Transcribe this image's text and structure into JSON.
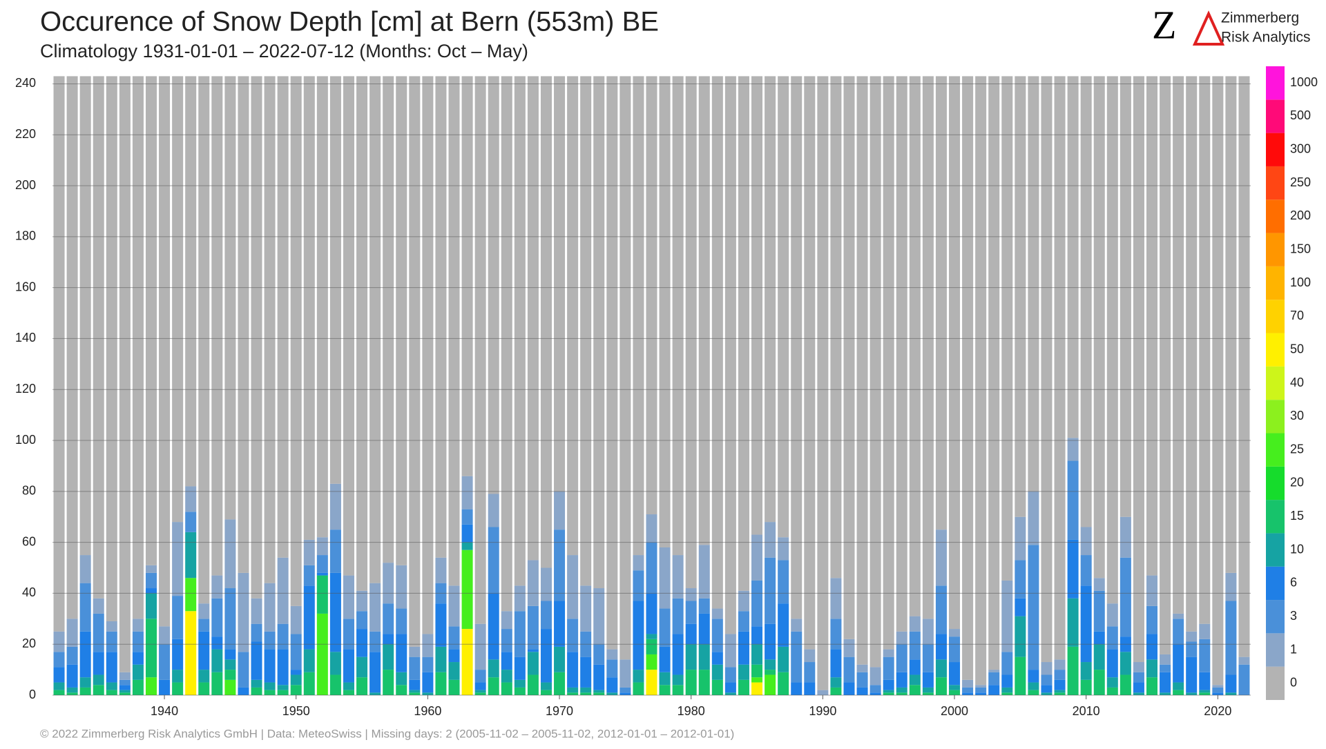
{
  "chart_data": {
    "type": "stacked_bar",
    "title": "Occurence of Snow Depth [cm] at Bern (553m) BE",
    "subtitle": "Climatology 1931-01-01 – 2022-07-12 (Months: Oct – May)",
    "footer": "©  2022 Zimmerberg Risk Analytics GmbH | Data: MeteoSwiss | Missing days: 2 (2005-11-02 – 2005-11-02, 2012-01-01 – 2012-01-01)",
    "logo": {
      "mark": "Z",
      "lines": [
        "Zimmerberg",
        "Risk Analytics"
      ]
    },
    "x": [
      1932,
      1933,
      1934,
      1935,
      1936,
      1937,
      1938,
      1939,
      1940,
      1941,
      1942,
      1943,
      1944,
      1945,
      1946,
      1947,
      1948,
      1949,
      1950,
      1951,
      1952,
      1953,
      1954,
      1955,
      1956,
      1957,
      1958,
      1959,
      1960,
      1961,
      1962,
      1963,
      1964,
      1965,
      1966,
      1967,
      1968,
      1969,
      1970,
      1971,
      1972,
      1973,
      1974,
      1975,
      1976,
      1977,
      1978,
      1979,
      1980,
      1981,
      1982,
      1983,
      1984,
      1985,
      1986,
      1987,
      1988,
      1989,
      1990,
      1991,
      1992,
      1993,
      1994,
      1995,
      1996,
      1997,
      1998,
      1999,
      2000,
      2001,
      2002,
      2003,
      2004,
      2005,
      2006,
      2007,
      2008,
      2009,
      2010,
      2011,
      2012,
      2013,
      2014,
      2015,
      2016,
      2017,
      2018,
      2019,
      2020,
      2021,
      2022
    ],
    "xlim": [
      1931.5,
      2022.5
    ],
    "xticks": [
      1940,
      1950,
      1960,
      1970,
      1980,
      1990,
      2000,
      2010,
      2020
    ],
    "ylim": [
      0,
      245
    ],
    "yticks": [
      0,
      20,
      40,
      60,
      80,
      100,
      120,
      140,
      160,
      180,
      200,
      220,
      240
    ],
    "grid": true,
    "colorbar": [
      {
        "label": "0",
        "color": "#b3b3b3"
      },
      {
        "label": "1",
        "color": "#8aa6c9"
      },
      {
        "label": "3",
        "color": "#4a90d9"
      },
      {
        "label": "6",
        "color": "#1f7fe6"
      },
      {
        "label": "10",
        "color": "#16a3a3"
      },
      {
        "label": "15",
        "color": "#17c36b"
      },
      {
        "label": "20",
        "color": "#16dc2c"
      },
      {
        "label": "25",
        "color": "#46ee1e"
      },
      {
        "label": "30",
        "color": "#8cf01e"
      },
      {
        "label": "40",
        "color": "#cdf51a"
      },
      {
        "label": "50",
        "color": "#fff000"
      },
      {
        "label": "70",
        "color": "#ffd200"
      },
      {
        "label": "100",
        "color": "#ffb400"
      },
      {
        "label": "150",
        "color": "#ff9600"
      },
      {
        "label": "200",
        "color": "#ff6e00"
      },
      {
        "label": "250",
        "color": "#ff4614"
      },
      {
        "label": "300",
        "color": "#ff0a0a"
      },
      {
        "label": "500",
        "color": "#ff0a78"
      },
      {
        "label": "1000",
        "color": "#ff14dc"
      }
    ],
    "series": [
      {
        "name": "50",
        "values": [
          0,
          0,
          0,
          0,
          0,
          0,
          0,
          0,
          0,
          0,
          33,
          0,
          0,
          0,
          0,
          0,
          0,
          0,
          0,
          0,
          0,
          0,
          0,
          0,
          0,
          0,
          0,
          0,
          0,
          0,
          0,
          26,
          0,
          0,
          0,
          0,
          0,
          0,
          0,
          0,
          0,
          0,
          0,
          0,
          0,
          10,
          0,
          0,
          0,
          0,
          0,
          0,
          0,
          5,
          0,
          0,
          0,
          0,
          0,
          0,
          0,
          0,
          0,
          0,
          0,
          0,
          0,
          0,
          0,
          0,
          0,
          0,
          0,
          0,
          0,
          0,
          0,
          0,
          0,
          0,
          0,
          0,
          0,
          0,
          0,
          0,
          0,
          0,
          0,
          0,
          0
        ]
      },
      {
        "name": "25",
        "values": [
          0,
          0,
          0,
          0,
          0,
          0,
          0,
          7,
          0,
          0,
          13,
          0,
          0,
          6,
          0,
          0,
          0,
          0,
          0,
          0,
          32,
          0,
          0,
          0,
          0,
          0,
          0,
          0,
          0,
          0,
          0,
          31,
          0,
          0,
          0,
          0,
          0,
          0,
          0,
          0,
          0,
          0,
          0,
          0,
          0,
          6,
          0,
          0,
          0,
          0,
          0,
          0,
          0,
          2,
          8,
          0,
          0,
          0,
          0,
          0,
          0,
          0,
          0,
          0,
          0,
          0,
          0,
          0,
          0,
          0,
          0,
          0,
          0,
          0,
          0,
          0,
          0,
          0,
          0,
          0,
          0,
          0,
          0,
          0,
          0,
          0,
          0,
          0,
          0,
          0,
          0
        ]
      },
      {
        "name": "15",
        "values": [
          2,
          1,
          3,
          4,
          2,
          1,
          6,
          23,
          0,
          5,
          0,
          5,
          9,
          4,
          0,
          3,
          2,
          2,
          4,
          9,
          15,
          8,
          2,
          7,
          0,
          10,
          4,
          1,
          0,
          9,
          6,
          0,
          1,
          7,
          5,
          3,
          8,
          2,
          9,
          1,
          1,
          1,
          0,
          0,
          5,
          6,
          4,
          4,
          10,
          10,
          6,
          0,
          6,
          5,
          2,
          9,
          0,
          0,
          0,
          3,
          0,
          0,
          0,
          1,
          1,
          4,
          1,
          7,
          2,
          0,
          0,
          0,
          1,
          15,
          2,
          0,
          1,
          19,
          6,
          10,
          3,
          8,
          0,
          7,
          0,
          2,
          0,
          1,
          0,
          0,
          0
        ]
      },
      {
        "name": "10",
        "values": [
          3,
          2,
          4,
          4,
          3,
          1,
          6,
          10,
          0,
          5,
          18,
          5,
          9,
          4,
          0,
          3,
          3,
          2,
          4,
          9,
          0,
          9,
          3,
          8,
          1,
          10,
          5,
          1,
          1,
          10,
          7,
          3,
          1,
          7,
          5,
          3,
          9,
          3,
          10,
          2,
          2,
          1,
          1,
          0,
          5,
          2,
          5,
          4,
          10,
          10,
          6,
          1,
          6,
          8,
          4,
          10,
          0,
          0,
          0,
          4,
          0,
          0,
          0,
          1,
          2,
          4,
          2,
          7,
          2,
          0,
          0,
          0,
          2,
          16,
          3,
          1,
          1,
          19,
          7,
          10,
          4,
          9,
          1,
          7,
          1,
          3,
          1,
          1,
          0,
          1,
          0
        ]
      },
      {
        "name": "6",
        "values": [
          6,
          9,
          18,
          9,
          12,
          2,
          5,
          2,
          6,
          12,
          0,
          15,
          5,
          4,
          3,
          15,
          13,
          14,
          2,
          25,
          1,
          31,
          13,
          11,
          16,
          4,
          15,
          4,
          8,
          17,
          5,
          7,
          3,
          26,
          7,
          9,
          1,
          21,
          18,
          14,
          12,
          10,
          6,
          1,
          27,
          16,
          10,
          16,
          8,
          12,
          5,
          4,
          13,
          7,
          14,
          17,
          5,
          5,
          0,
          11,
          5,
          3,
          1,
          4,
          6,
          6,
          6,
          10,
          9,
          1,
          1,
          4,
          5,
          7,
          5,
          3,
          4,
          23,
          30,
          5,
          11,
          6,
          4,
          10,
          8,
          15,
          14,
          7,
          1,
          7,
          0
        ]
      },
      {
        "name": "3",
        "values": [
          6,
          7,
          19,
          15,
          8,
          2,
          8,
          6,
          14,
          17,
          8,
          5,
          15,
          24,
          14,
          7,
          7,
          10,
          14,
          8,
          7,
          17,
          12,
          7,
          8,
          12,
          10,
          9,
          6,
          8,
          9,
          6,
          5,
          26,
          9,
          18,
          17,
          11,
          28,
          13,
          10,
          8,
          7,
          2,
          12,
          20,
          15,
          14,
          9,
          6,
          13,
          6,
          8,
          18,
          26,
          17,
          20,
          8,
          0,
          12,
          10,
          6,
          3,
          9,
          11,
          11,
          11,
          19,
          10,
          2,
          2,
          5,
          9,
          15,
          49,
          4,
          4,
          31,
          12,
          16,
          9,
          31,
          4,
          11,
          3,
          10,
          6,
          13,
          2,
          29,
          12
        ]
      },
      {
        "name": "1",
        "values": [
          8,
          11,
          11,
          6,
          4,
          3,
          5,
          3,
          7,
          29,
          10,
          6,
          9,
          27,
          31,
          10,
          19,
          26,
          11,
          10,
          7,
          18,
          17,
          8,
          19,
          16,
          17,
          4,
          9,
          10,
          16,
          13,
          18,
          13,
          7,
          10,
          18,
          13,
          15,
          25,
          18,
          22,
          4,
          11,
          6,
          11,
          24,
          17,
          5,
          21,
          4,
          13,
          8,
          18,
          14,
          9,
          5,
          5,
          2,
          16,
          7,
          3,
          7,
          3,
          5,
          6,
          10,
          22,
          3,
          3,
          1,
          1,
          28,
          17,
          21,
          5,
          4,
          9,
          11,
          5,
          9,
          16,
          4,
          12,
          4,
          2,
          4,
          6,
          1,
          11,
          3
        ]
      },
      {
        "name": "0",
        "values": [
          218,
          213,
          188,
          205,
          214,
          234,
          213,
          192,
          216,
          175,
          161,
          207,
          196,
          174,
          195,
          205,
          199,
          189,
          208,
          182,
          181,
          160,
          196,
          202,
          199,
          191,
          192,
          224,
          219,
          189,
          200,
          157,
          215,
          164,
          210,
          200,
          190,
          193,
          163,
          188,
          200,
          201,
          225,
          229,
          188,
          172,
          185,
          188,
          201,
          184,
          209,
          219,
          202,
          180,
          175,
          181,
          213,
          225,
          241,
          197,
          221,
          231,
          232,
          225,
          218,
          212,
          213,
          178,
          217,
          237,
          239,
          233,
          198,
          173,
          163,
          230,
          229,
          142,
          177,
          197,
          207,
          173,
          230,
          196,
          227,
          211,
          218,
          215,
          239,
          195,
          228
        ]
      }
    ]
  }
}
